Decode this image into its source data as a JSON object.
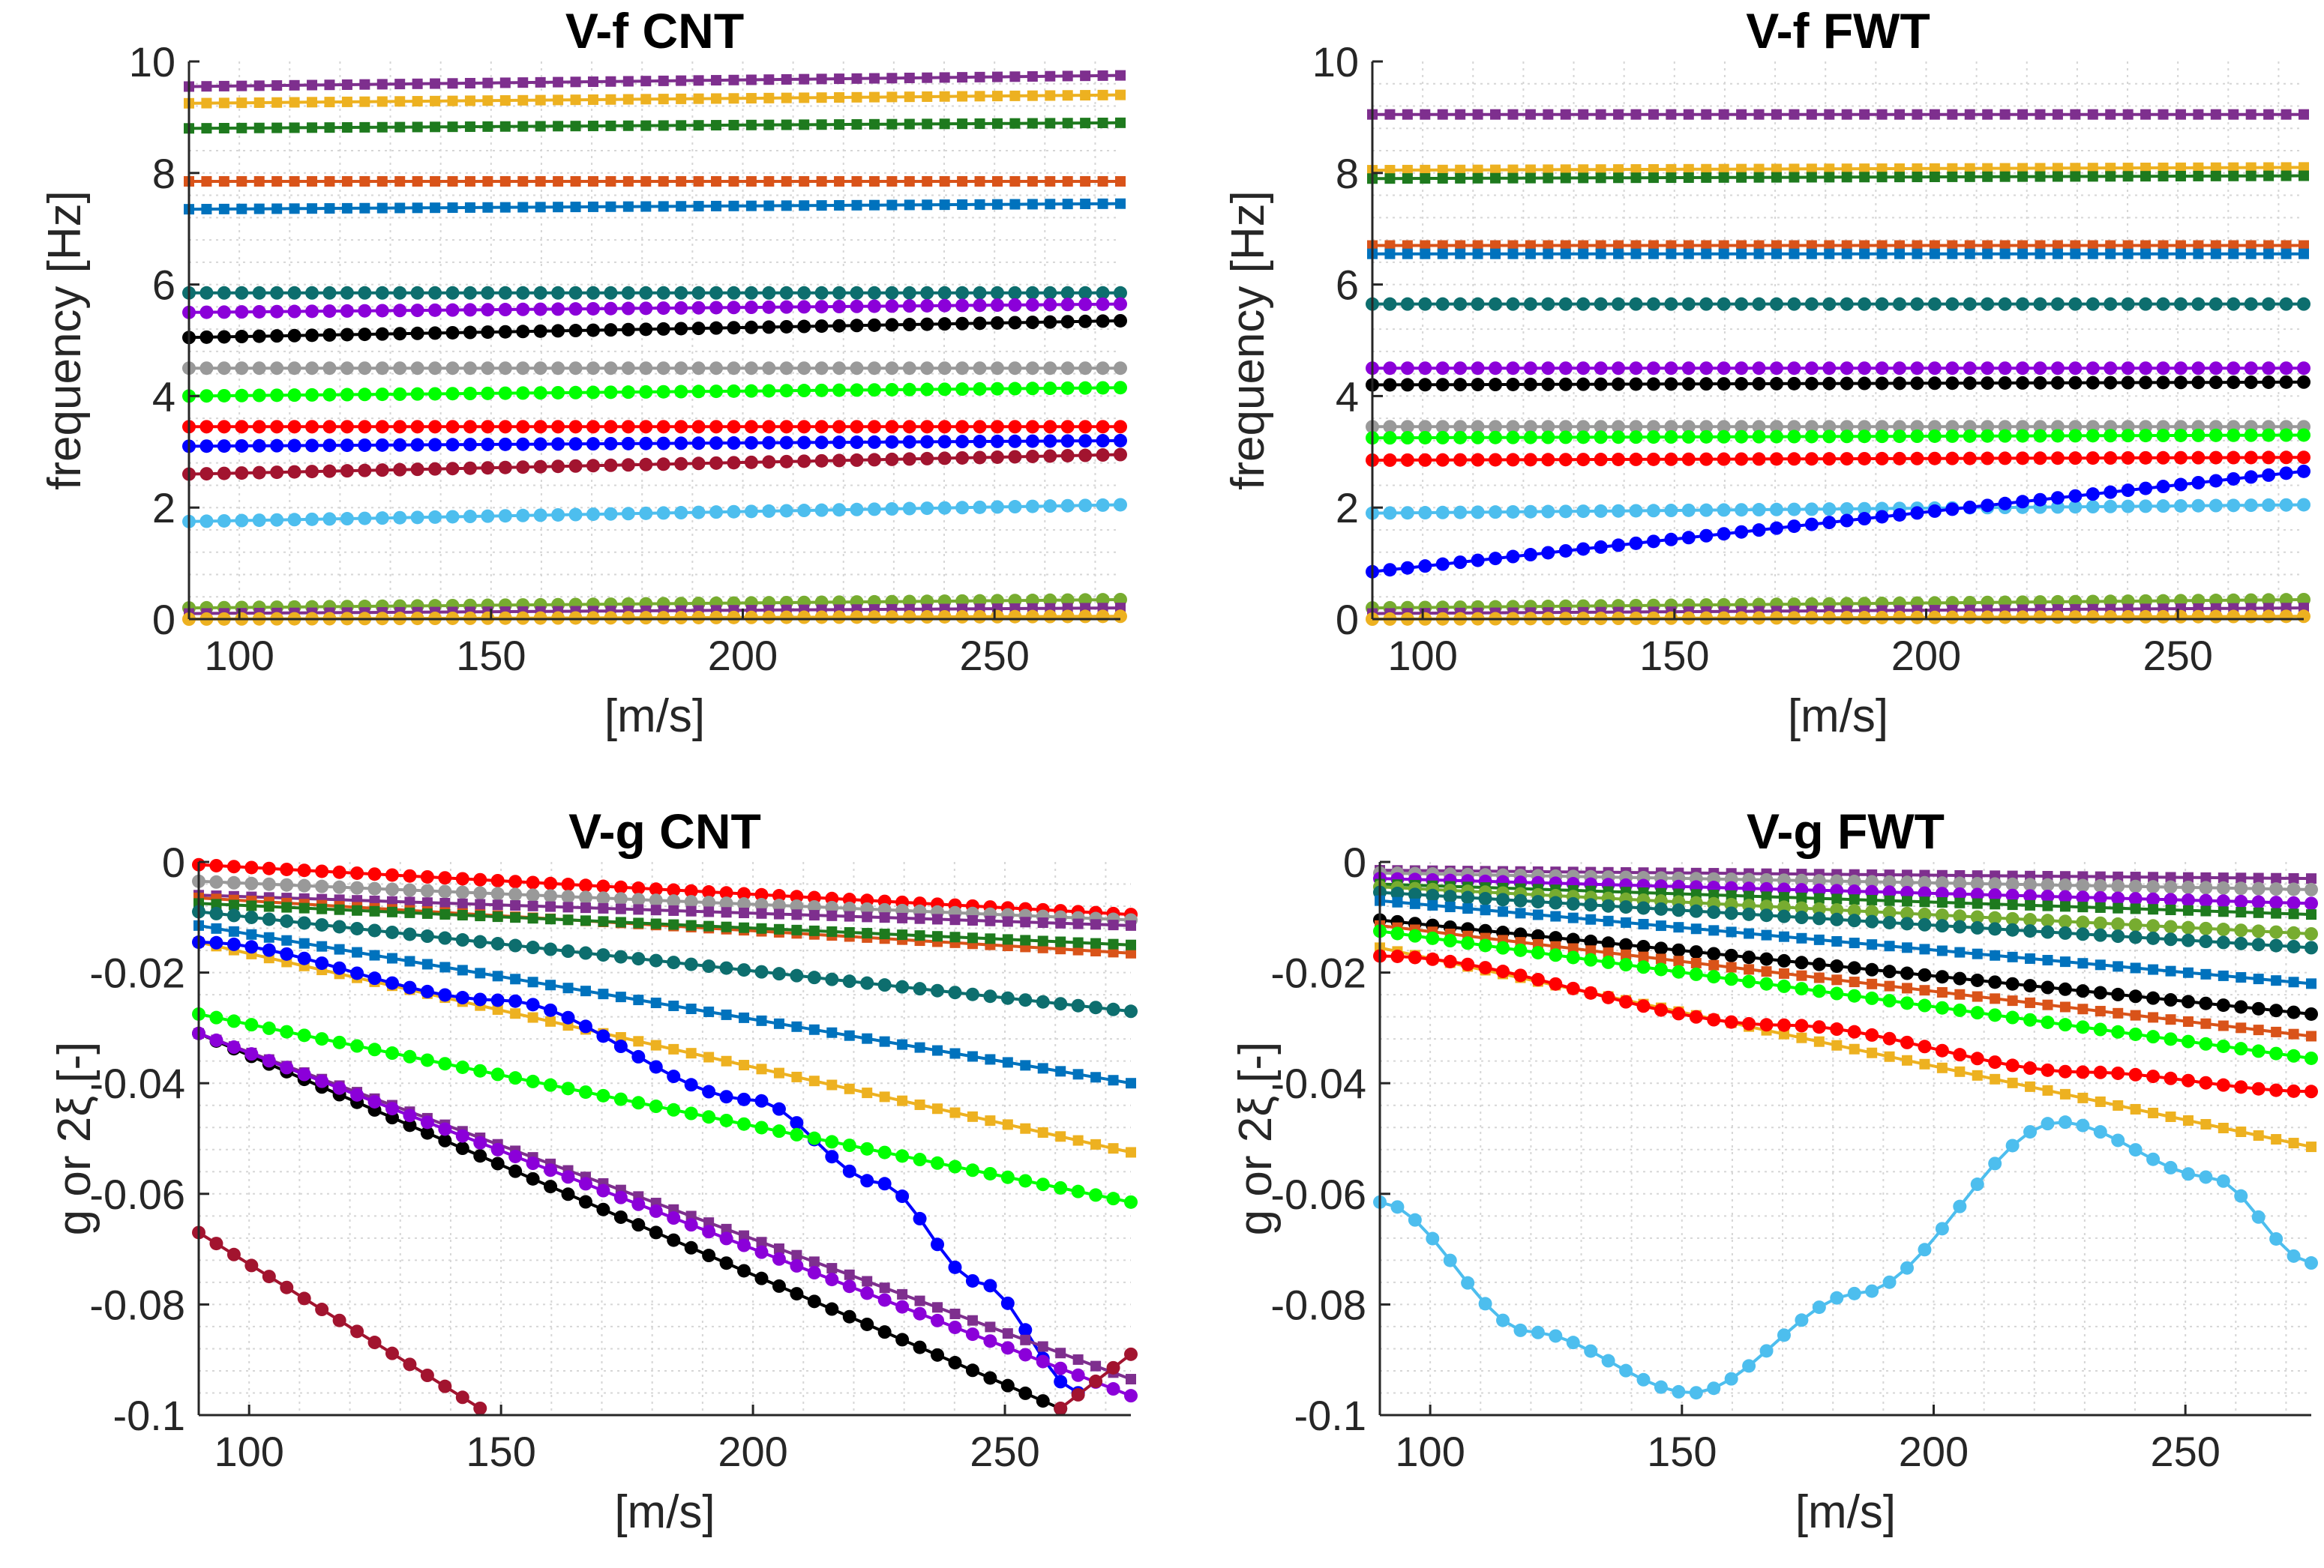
{
  "chart_data": [
    {
      "type": "line",
      "id": "vf-cnt",
      "title": "V-f CNT",
      "xlabel": "[m/s]",
      "ylabel": "frequency [Hz]",
      "xlim": [
        90,
        275
      ],
      "ylim": [
        0,
        10
      ],
      "xticks": [
        100,
        150,
        200,
        250
      ],
      "yticks": [
        0,
        2,
        4,
        6,
        8,
        10
      ],
      "grid": true,
      "series": [
        {
          "name": "sq-purple",
          "color": "#7E2F8E",
          "marker": "square",
          "y0": 9.55,
          "y1": 9.75
        },
        {
          "name": "sq-yellow",
          "color": "#EDB120",
          "marker": "square",
          "y0": 9.25,
          "y1": 9.4
        },
        {
          "name": "sq-green",
          "color": "#1E7A1E",
          "marker": "square",
          "y0": 8.8,
          "y1": 8.9
        },
        {
          "name": "sq-orange",
          "color": "#D95319",
          "marker": "square",
          "y0": 7.85,
          "y1": 7.85
        },
        {
          "name": "sq-blue",
          "color": "#0072BD",
          "marker": "square",
          "y0": 7.35,
          "y1": 7.45
        },
        {
          "name": "dot-teal",
          "color": "#0D6E6E",
          "marker": "circle",
          "y0": 5.85,
          "y1": 5.85
        },
        {
          "name": "dot-violet",
          "color": "#8B00D9",
          "marker": "circle",
          "y0": 5.5,
          "y1": 5.65
        },
        {
          "name": "dot-black",
          "color": "#000000",
          "marker": "circle",
          "y0": 5.05,
          "y1": 5.35
        },
        {
          "name": "dot-gray",
          "color": "#999999",
          "marker": "circle",
          "y0": 4.5,
          "y1": 4.5
        },
        {
          "name": "dot-lime",
          "color": "#00FF00",
          "marker": "circle",
          "y0": 4.0,
          "y1": 4.15
        },
        {
          "name": "dot-red",
          "color": "#FF0000",
          "marker": "circle",
          "y0": 3.45,
          "y1": 3.45
        },
        {
          "name": "dot-navy",
          "color": "#0000FF",
          "marker": "circle",
          "y0": 3.1,
          "y1": 3.2
        },
        {
          "name": "dot-maroon",
          "color": "#A2142F",
          "marker": "circle",
          "y0": 2.6,
          "y1": 2.95
        },
        {
          "name": "dot-sky",
          "color": "#4DBEEE",
          "marker": "circle",
          "y0": 1.75,
          "y1": 2.05
        },
        {
          "name": "dot-olive",
          "color": "#77AC30",
          "marker": "circle",
          "y0": 0.2,
          "y1": 0.35
        },
        {
          "name": "sq-purple-low",
          "color": "#7E2F8E",
          "marker": "square",
          "y0": 0.1,
          "y1": 0.2
        },
        {
          "name": "dot-yellow-low",
          "color": "#EDB120",
          "marker": "circle",
          "y0": 0.0,
          "y1": 0.05
        }
      ]
    },
    {
      "type": "line",
      "id": "vf-fwt",
      "title": "V-f FWT",
      "xlabel": "[m/s]",
      "ylabel": "frequency [Hz]",
      "xlim": [
        90,
        275
      ],
      "ylim": [
        0,
        10
      ],
      "xticks": [
        100,
        150,
        200,
        250
      ],
      "yticks": [
        0,
        2,
        4,
        6,
        8,
        10
      ],
      "grid": true,
      "series": [
        {
          "name": "sq-purple",
          "color": "#7E2F8E",
          "marker": "square",
          "y0": 9.05,
          "y1": 9.05
        },
        {
          "name": "sq-yellow",
          "color": "#EDB120",
          "marker": "square",
          "y0": 8.05,
          "y1": 8.1
        },
        {
          "name": "sq-green",
          "color": "#1E7A1E",
          "marker": "square",
          "y0": 7.9,
          "y1": 7.95
        },
        {
          "name": "sq-orange",
          "color": "#D95319",
          "marker": "square",
          "y0": 6.7,
          "y1": 6.7
        },
        {
          "name": "sq-blue",
          "color": "#0072BD",
          "marker": "square",
          "y0": 6.55,
          "y1": 6.55
        },
        {
          "name": "dot-teal",
          "color": "#0D6E6E",
          "marker": "circle",
          "y0": 5.65,
          "y1": 5.65
        },
        {
          "name": "dot-violet",
          "color": "#8B00D9",
          "marker": "circle",
          "y0": 4.5,
          "y1": 4.5
        },
        {
          "name": "dot-black",
          "color": "#000000",
          "marker": "circle",
          "y0": 4.2,
          "y1": 4.25
        },
        {
          "name": "dot-gray",
          "color": "#999999",
          "marker": "circle",
          "y0": 3.45,
          "y1": 3.45
        },
        {
          "name": "dot-lime",
          "color": "#00FF00",
          "marker": "circle",
          "y0": 3.25,
          "y1": 3.3
        },
        {
          "name": "dot-red",
          "color": "#FF0000",
          "marker": "circle",
          "y0": 2.85,
          "y1": 2.9
        },
        {
          "name": "dot-sky",
          "color": "#4DBEEE",
          "marker": "circle",
          "y0": 1.9,
          "y1": 2.05
        },
        {
          "name": "dot-navy",
          "color": "#0000FF",
          "marker": "circle",
          "y0": 0.85,
          "y1": 2.65
        },
        {
          "name": "dot-olive",
          "color": "#77AC30",
          "marker": "circle",
          "y0": 0.2,
          "y1": 0.35
        },
        {
          "name": "sq-purple-low",
          "color": "#7E2F8E",
          "marker": "square",
          "y0": 0.1,
          "y1": 0.2
        },
        {
          "name": "dot-yellow-low",
          "color": "#EDB120",
          "marker": "circle",
          "y0": 0.0,
          "y1": 0.05
        }
      ]
    },
    {
      "type": "line",
      "id": "vg-cnt",
      "title": "V-g CNT",
      "xlabel": "[m/s]",
      "ylabel": "g or 2ξ [-]",
      "xlim": [
        90,
        275
      ],
      "ylim": [
        -0.1,
        0.0
      ],
      "xticks": [
        100,
        150,
        200,
        250
      ],
      "yticks": [
        -0.1,
        -0.08,
        -0.06,
        -0.04,
        -0.02,
        0
      ],
      "ytick_labels": [
        "-0.1",
        "-0.08",
        "-0.06",
        "-0.04",
        "-0.02",
        "0"
      ],
      "grid": true,
      "series": [
        {
          "name": "dot-red",
          "color": "#FF0000",
          "marker": "circle",
          "x": [
            90,
            275
          ],
          "y": [
            -0.0005,
            -0.0095
          ]
        },
        {
          "name": "dot-gray",
          "color": "#999999",
          "marker": "circle",
          "x": [
            90,
            275
          ],
          "y": [
            -0.0035,
            -0.0105
          ]
        },
        {
          "name": "sq-purple",
          "color": "#7E2F8E",
          "marker": "square",
          "x": [
            90,
            275
          ],
          "y": [
            -0.006,
            -0.0115
          ]
        },
        {
          "name": "sq-orange",
          "color": "#D95319",
          "marker": "square",
          "x": [
            90,
            275
          ],
          "y": [
            -0.0065,
            -0.0165
          ]
        },
        {
          "name": "sq-green",
          "color": "#1E7A1E",
          "marker": "square",
          "x": [
            90,
            275
          ],
          "y": [
            -0.0075,
            -0.015
          ]
        },
        {
          "name": "dot-teal",
          "color": "#0D6E6E",
          "marker": "circle",
          "x": [
            90,
            275
          ],
          "y": [
            -0.009,
            -0.027
          ]
        },
        {
          "name": "sq-blue",
          "color": "#0072BD",
          "marker": "square",
          "x": [
            90,
            275
          ],
          "y": [
            -0.0115,
            -0.04
          ]
        },
        {
          "name": "sq-yellow",
          "color": "#EDB120",
          "marker": "square",
          "x": [
            90,
            275
          ],
          "y": [
            -0.0145,
            -0.0525
          ]
        },
        {
          "name": "dot-navy",
          "color": "#0000FF",
          "marker": "circle",
          "x": [
            90,
            150,
            200,
            225,
            245,
            265
          ],
          "y": [
            -0.0145,
            -0.025,
            -0.043,
            -0.058,
            -0.076,
            -0.096
          ]
        },
        {
          "name": "dot-lime",
          "color": "#00FF00",
          "marker": "circle",
          "x": [
            90,
            275
          ],
          "y": [
            -0.0275,
            -0.0615
          ]
        },
        {
          "name": "sq-purple-2",
          "color": "#7E2F8E",
          "marker": "square",
          "x": [
            90,
            275
          ],
          "y": [
            -0.031,
            -0.0935
          ]
        },
        {
          "name": "dot-black",
          "color": "#000000",
          "marker": "circle",
          "x": [
            90,
            264
          ],
          "y": [
            -0.031,
            -0.1
          ]
        },
        {
          "name": "dot-violet",
          "color": "#8B00D9",
          "marker": "circle",
          "x": [
            90,
            275
          ],
          "y": [
            -0.031,
            -0.0965
          ]
        },
        {
          "name": "dot-maroon",
          "color": "#A2142F",
          "marker": "circle",
          "x": [
            90,
            148
          ],
          "y": [
            -0.067,
            -0.1
          ]
        },
        {
          "name": "dot-maroon-tail",
          "color": "#A2142F",
          "marker": "circle",
          "x": [
            260,
            275
          ],
          "y": [
            -0.0995,
            -0.089
          ]
        }
      ]
    },
    {
      "type": "line",
      "id": "vg-fwt",
      "title": "V-g FWT",
      "xlabel": "[m/s]",
      "ylabel": "g or 2ξ [-]",
      "xlim": [
        90,
        275
      ],
      "ylim": [
        -0.1,
        0.0
      ],
      "xticks": [
        100,
        150,
        200,
        250
      ],
      "yticks": [
        -0.1,
        -0.08,
        -0.06,
        -0.04,
        -0.02,
        0
      ],
      "ytick_labels": [
        "-0.1",
        "-0.08",
        "-0.06",
        "-0.04",
        "-0.02",
        "0"
      ],
      "grid": true,
      "series": [
        {
          "name": "sq-purple",
          "color": "#7E2F8E",
          "marker": "square",
          "x": [
            90,
            275
          ],
          "y": [
            -0.0015,
            -0.003
          ]
        },
        {
          "name": "dot-gray",
          "color": "#999999",
          "marker": "circle",
          "x": [
            90,
            275
          ],
          "y": [
            -0.002,
            -0.005
          ]
        },
        {
          "name": "dot-violet",
          "color": "#8B00D9",
          "marker": "circle",
          "x": [
            90,
            275
          ],
          "y": [
            -0.003,
            -0.0075
          ]
        },
        {
          "name": "sq-green",
          "color": "#1E7A1E",
          "marker": "square",
          "x": [
            90,
            275
          ],
          "y": [
            -0.004,
            -0.0095
          ]
        },
        {
          "name": "dot-olive",
          "color": "#77AC30",
          "marker": "circle",
          "x": [
            90,
            275
          ],
          "y": [
            -0.0045,
            -0.013
          ]
        },
        {
          "name": "dot-teal",
          "color": "#0D6E6E",
          "marker": "circle",
          "x": [
            90,
            275
          ],
          "y": [
            -0.0055,
            -0.0155
          ]
        },
        {
          "name": "sq-blue",
          "color": "#0072BD",
          "marker": "square",
          "x": [
            90,
            275
          ],
          "y": [
            -0.007,
            -0.022
          ]
        },
        {
          "name": "dot-black",
          "color": "#000000",
          "marker": "circle",
          "x": [
            90,
            275
          ],
          "y": [
            -0.0105,
            -0.0275
          ]
        },
        {
          "name": "sq-orange",
          "color": "#D95319",
          "marker": "square",
          "x": [
            90,
            275
          ],
          "y": [
            -0.0115,
            -0.0315
          ]
        },
        {
          "name": "dot-lime",
          "color": "#00FF00",
          "marker": "circle",
          "x": [
            90,
            275
          ],
          "y": [
            -0.0125,
            -0.0355
          ]
        },
        {
          "name": "sq-yellow",
          "color": "#EDB120",
          "marker": "square",
          "x": [
            90,
            275
          ],
          "y": [
            -0.0155,
            -0.0515
          ]
        },
        {
          "name": "dot-red",
          "color": "#FF0000",
          "marker": "circle",
          "x": [
            90,
            170,
            230,
            275
          ],
          "y": [
            -0.017,
            -0.0295,
            -0.038,
            -0.0415
          ]
        },
        {
          "name": "dot-sky",
          "color": "#4DBEEE",
          "marker": "circle",
          "x": [
            90,
            120,
            152,
            185,
            225,
            255,
            275
          ],
          "y": [
            -0.0615,
            -0.085,
            -0.096,
            -0.078,
            -0.047,
            -0.057,
            -0.0725
          ]
        }
      ]
    }
  ]
}
